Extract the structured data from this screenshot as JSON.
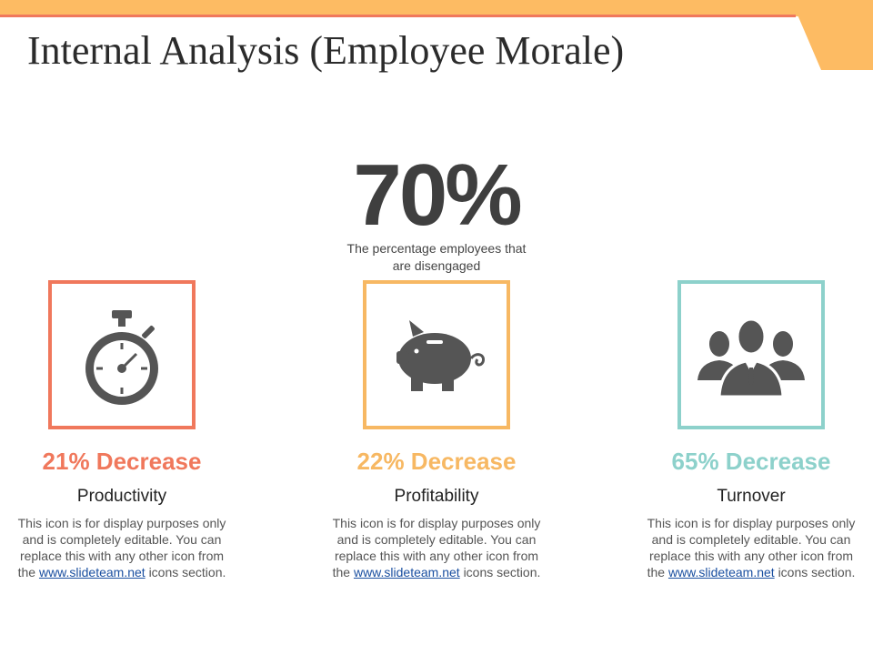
{
  "slide": {
    "title": "Internal Analysis (Employee Morale)",
    "colors": {
      "accent_top": "#FDBB63",
      "accent_line": "#F0785C"
    }
  },
  "headline": {
    "value": "70%",
    "caption": "The percentage employees that are disengaged"
  },
  "items": [
    {
      "stat": "21% Decrease",
      "label": "Productivity",
      "icon": "stopwatch-icon",
      "color": "#F0785C",
      "desc_before": "This icon is for display purposes only and is completely editable. You can replace this with any other icon from the",
      "link_text": "www.slideteam.net",
      "desc_after": "icons section."
    },
    {
      "stat": "22% Decrease",
      "label": "Profitability",
      "icon": "piggy-bank-icon",
      "color": "#F7B863",
      "desc_before": "This icon is for display purposes only and is completely editable. You can replace this with any other icon from the",
      "link_text": "www.slideteam.net",
      "desc_after": "icons section."
    },
    {
      "stat": "65% Decrease",
      "label": "Turnover",
      "icon": "team-icon",
      "color": "#8DD1CB",
      "desc_before": "This icon is for display purposes only and is completely editable. You can replace this with any other icon from the",
      "link_text": "www.slideteam.net",
      "desc_after": "icons section."
    }
  ]
}
